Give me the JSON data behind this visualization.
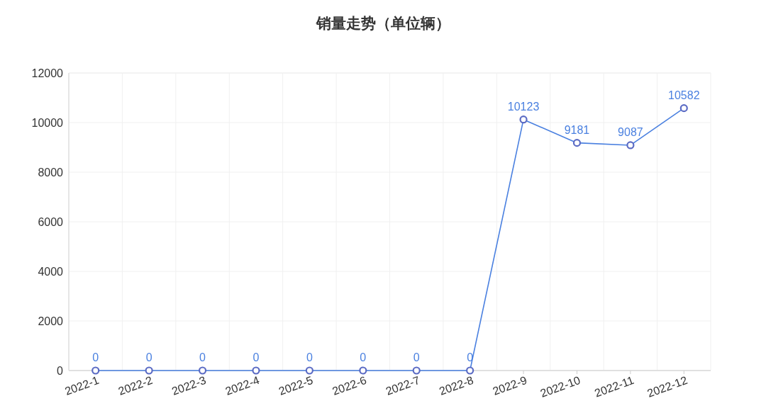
{
  "chart_data": {
    "type": "line",
    "title": "销量走势（单位辆）",
    "categories": [
      "2022-1",
      "2022-2",
      "2022-3",
      "2022-4",
      "2022-5",
      "2022-6",
      "2022-7",
      "2022-8",
      "2022-9",
      "2022-10",
      "2022-11",
      "2022-12"
    ],
    "series": [
      {
        "color": "#4a80e0",
        "values": [
          0,
          0,
          0,
          0,
          0,
          0,
          0,
          0,
          10123,
          9181,
          9087,
          10582
        ]
      }
    ],
    "ylim": [
      0,
      12000
    ],
    "yticks": [
      0,
      2000,
      4000,
      6000,
      8000,
      10000,
      12000
    ],
    "grid": true,
    "marker": "circle",
    "data_labels": true
  }
}
